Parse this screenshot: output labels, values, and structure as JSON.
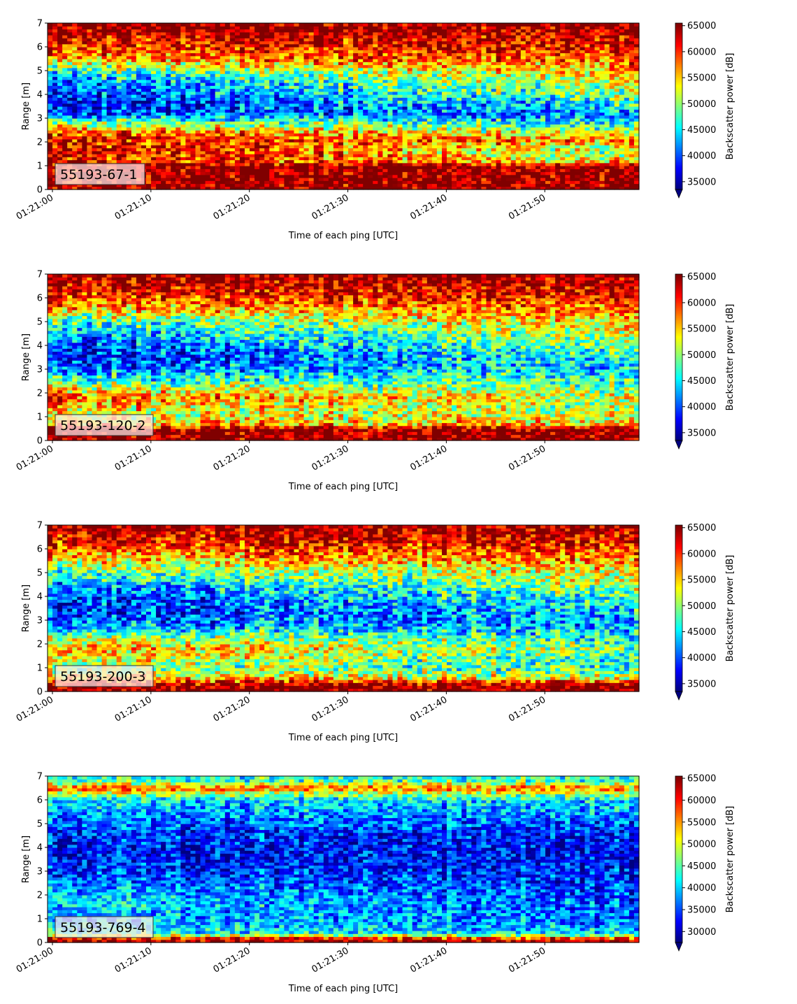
{
  "chart_data": [
    {
      "type": "heatmap",
      "tag": "55193-67-1",
      "xlabel": "Time of each ping [UTC]",
      "ylabel": "Range [m]",
      "colorbar_label": "Backscatter power [dB]",
      "x_ticks": [
        "01:21:00",
        "01:21:10",
        "01:21:20",
        "01:21:30",
        "01:21:40",
        "01:21:50"
      ],
      "x_range": [
        "01:21:00",
        "01:21:59"
      ],
      "y_ticks": [
        0,
        1,
        2,
        3,
        4,
        5,
        6,
        7
      ],
      "ylim": [
        0,
        7
      ],
      "colorbar_ticks": [
        35000,
        40000,
        45000,
        50000,
        55000,
        60000,
        65000
      ],
      "colorbar_range": [
        33500,
        65500
      ],
      "colormap": "jet",
      "colorbar_extend": "min",
      "profile": {
        "range_m": [
          0,
          0.25,
          0.5,
          1.0,
          1.2,
          1.5,
          1.8,
          2.1,
          2.5,
          2.8,
          3.2,
          3.6,
          4.0,
          4.5,
          5.0,
          5.5,
          6.0,
          6.5,
          7.0
        ],
        "start": [
          65500,
          65500,
          65500,
          65500,
          62000,
          64000,
          63000,
          62000,
          58000,
          50000,
          40000,
          37000,
          39000,
          41000,
          47000,
          57000,
          60000,
          64000,
          65500
        ],
        "end": [
          65500,
          65500,
          65500,
          65500,
          54000,
          50000,
          52000,
          58000,
          50000,
          46000,
          42000,
          46000,
          50000,
          53000,
          56000,
          60000,
          62000,
          64000,
          65500
        ]
      }
    },
    {
      "type": "heatmap",
      "tag": "55193-120-2",
      "xlabel": "Time of each ping [UTC]",
      "ylabel": "Range [m]",
      "colorbar_label": "Backscatter power [dB]",
      "x_ticks": [
        "01:21:00",
        "01:21:10",
        "01:21:20",
        "01:21:30",
        "01:21:40",
        "01:21:50"
      ],
      "x_range": [
        "01:21:00",
        "01:21:59"
      ],
      "y_ticks": [
        0,
        1,
        2,
        3,
        4,
        5,
        6,
        7
      ],
      "ylim": [
        0,
        7
      ],
      "colorbar_ticks": [
        35000,
        40000,
        45000,
        50000,
        55000,
        60000,
        65000
      ],
      "colorbar_range": [
        33500,
        65500
      ],
      "colormap": "jet",
      "colorbar_extend": "min",
      "profile": {
        "range_m": [
          0,
          0.2,
          0.5,
          0.7,
          1.0,
          1.4,
          1.8,
          2.2,
          2.6,
          3.0,
          3.5,
          4.0,
          4.5,
          5.0,
          5.5,
          6.0,
          6.5,
          7.0
        ],
        "start": [
          65500,
          65500,
          65500,
          56000,
          53000,
          55000,
          59000,
          54000,
          46000,
          41000,
          38000,
          39000,
          43000,
          47000,
          55000,
          60000,
          63000,
          65500
        ],
        "end": [
          65500,
          65500,
          65500,
          55000,
          52000,
          50000,
          52000,
          49000,
          47000,
          45000,
          46000,
          50000,
          52000,
          55000,
          58000,
          61000,
          63000,
          65500
        ]
      }
    },
    {
      "type": "heatmap",
      "tag": "55193-200-3",
      "xlabel": "Time of each ping [UTC]",
      "ylabel": "Range [m]",
      "colorbar_label": "Backscatter power [dB]",
      "x_ticks": [
        "01:21:00",
        "01:21:10",
        "01:21:20",
        "01:21:30",
        "01:21:40",
        "01:21:50"
      ],
      "x_range": [
        "01:21:00",
        "01:21:59"
      ],
      "y_ticks": [
        0,
        1,
        2,
        3,
        4,
        5,
        6,
        7
      ],
      "ylim": [
        0,
        7
      ],
      "colorbar_ticks": [
        35000,
        40000,
        45000,
        50000,
        55000,
        60000,
        65000
      ],
      "colorbar_range": [
        33500,
        65500
      ],
      "colormap": "jet",
      "colorbar_extend": "min",
      "profile": {
        "range_m": [
          0,
          0.15,
          0.35,
          0.6,
          1.0,
          1.4,
          1.8,
          2.2,
          2.6,
          3.0,
          3.5,
          4.0,
          4.5,
          5.0,
          5.5,
          6.0,
          6.5,
          7.0
        ],
        "start": [
          65500,
          65500,
          63000,
          54000,
          50000,
          55000,
          57000,
          52000,
          45000,
          40000,
          38000,
          39000,
          42000,
          47000,
          54000,
          59000,
          63000,
          65500
        ],
        "end": [
          65500,
          65500,
          63000,
          52000,
          47000,
          46000,
          49000,
          47000,
          44000,
          43000,
          45000,
          48000,
          51000,
          54000,
          57000,
          60000,
          63000,
          65500
        ]
      }
    },
    {
      "type": "heatmap",
      "tag": "55193-769-4",
      "xlabel": "Time of each ping [UTC]",
      "ylabel": "Range [m]",
      "colorbar_label": "Backscatter power [dB]",
      "x_ticks": [
        "01:21:00",
        "01:21:10",
        "01:21:20",
        "01:21:30",
        "01:21:40",
        "01:21:50"
      ],
      "x_range": [
        "01:21:00",
        "01:21:59"
      ],
      "y_ticks": [
        0,
        1,
        2,
        3,
        4,
        5,
        6,
        7
      ],
      "ylim": [
        0,
        7
      ],
      "colorbar_ticks": [
        30000,
        35000,
        40000,
        45000,
        50000,
        55000,
        60000,
        65000
      ],
      "colorbar_range": [
        27500,
        65500
      ],
      "colormap": "jet",
      "colorbar_extend": "min",
      "profile": {
        "range_m": [
          0,
          0.1,
          0.25,
          0.4,
          0.8,
          1.2,
          1.8,
          2.4,
          3.0,
          3.5,
          4.0,
          4.5,
          5.0,
          5.5,
          6.0,
          6.3,
          6.5,
          6.8,
          7.0
        ],
        "start": [
          60000,
          65500,
          55000,
          43000,
          40000,
          39000,
          41000,
          37000,
          34000,
          33000,
          33000,
          34000,
          36000,
          38000,
          41000,
          50000,
          58000,
          44000,
          43000
        ],
        "end": [
          58000,
          65500,
          52000,
          40000,
          37000,
          36000,
          35000,
          34000,
          33000,
          32000,
          32000,
          33000,
          35000,
          38000,
          40000,
          48000,
          56000,
          44000,
          42000
        ]
      }
    }
  ]
}
